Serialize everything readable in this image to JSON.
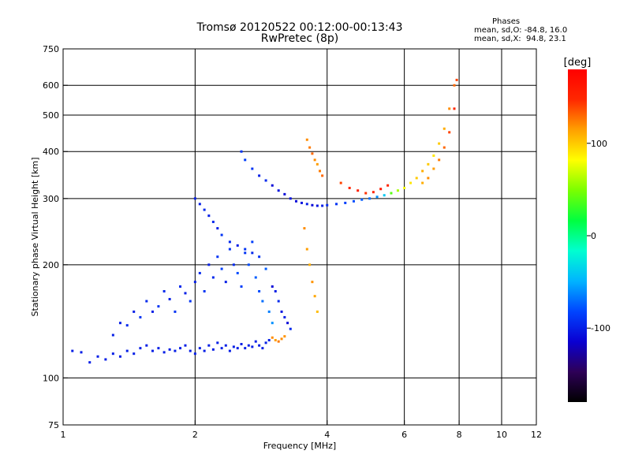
{
  "header": {
    "title_line1": "Tromsø 20120522 00:12:00-00:13:43",
    "title_line2": "RwPretec (8p)",
    "phases_title": "Phases",
    "phases_o": "mean, sd,O: -84.8, 16.0",
    "phases_x": "mean, sd,X:  94.8, 23.1"
  },
  "colorbar": {
    "label": "[deg]",
    "ticks": [
      "100",
      "0",
      "-100"
    ],
    "tick_values": [
      100,
      0,
      -100
    ],
    "range": [
      -180,
      180
    ],
    "colors": [
      "#000000",
      "#2e0057",
      "#0a00d2",
      "#0045ff",
      "#00b4ff",
      "#00ffd0",
      "#00ff40",
      "#7aff00",
      "#ffff00",
      "#ffa000",
      "#ff2800",
      "#ff0000"
    ]
  },
  "chart_data": {
    "type": "scatter",
    "title": "Tromsø 20120522 00:12:00-00:13:43",
    "subtitle": "RwPretec (8p)",
    "xlabel": "Frequency [MHz]",
    "ylabel": "Stationary phase Virtual Height [km]",
    "x_scale": "log",
    "y_scale": "log",
    "xlim": [
      1,
      12
    ],
    "ylim": [
      75,
      750
    ],
    "x_ticks": [
      1,
      2,
      4,
      6,
      8,
      10,
      12
    ],
    "x_tick_labels": [
      "1",
      "2",
      "4",
      "6",
      "8",
      "10",
      "12"
    ],
    "y_ticks": [
      75,
      100,
      200,
      300,
      400,
      500,
      600,
      750
    ],
    "y_tick_labels": [
      "75",
      "100",
      "200",
      "300",
      "400",
      "500",
      "600",
      "750"
    ],
    "x_grid": [
      2,
      4,
      6,
      8,
      10
    ],
    "y_grid": [
      100,
      200,
      300,
      400,
      500,
      600
    ],
    "grid": true,
    "color_variable": "phase [deg]",
    "series": [
      {
        "x": [
          1.05,
          1.1,
          1.15,
          1.2,
          1.25,
          1.3,
          1.35,
          1.4,
          1.45,
          1.5,
          1.55,
          1.6,
          1.65,
          1.7,
          1.75,
          1.8,
          1.85,
          1.9,
          1.95,
          2.0,
          2.05,
          2.1,
          2.15,
          2.2,
          2.25,
          2.3,
          2.35,
          2.4,
          2.45,
          2.5,
          2.55,
          2.6,
          2.65,
          2.7,
          2.75,
          2.8,
          2.85,
          2.9,
          2.95
        ],
        "y": [
          118,
          117,
          110,
          114,
          112,
          116,
          114,
          118,
          116,
          120,
          122,
          118,
          120,
          117,
          119,
          118,
          120,
          122,
          118,
          116,
          120,
          118,
          122,
          119,
          124,
          120,
          122,
          118,
          121,
          120,
          123,
          120,
          122,
          121,
          125,
          122,
          120,
          124,
          126
        ],
        "phase": [
          -100,
          -100,
          -100,
          -100,
          -100,
          -100,
          -100,
          -100,
          -100,
          -100,
          -100,
          -100,
          -100,
          -100,
          -100,
          -100,
          -100,
          -100,
          -100,
          -100,
          -100,
          -100,
          -100,
          -100,
          -100,
          -100,
          -100,
          -100,
          -100,
          -100,
          -100,
          -100,
          -100,
          -100,
          -100,
          -100,
          -100,
          -100,
          -100
        ]
      },
      {
        "x": [
          1.3,
          1.35,
          1.4,
          1.45,
          1.5,
          1.55,
          1.6,
          1.65,
          1.7,
          1.75,
          1.8,
          1.85,
          1.9,
          1.95,
          2.0,
          2.05,
          2.1,
          2.15,
          2.2,
          2.25,
          2.3,
          2.35,
          2.4,
          2.45,
          2.5,
          2.55,
          2.6,
          2.65,
          2.7,
          2.75,
          2.8,
          2.85,
          2.9,
          2.95,
          3.0
        ],
        "y": [
          130,
          140,
          138,
          150,
          145,
          160,
          150,
          155,
          170,
          162,
          150,
          175,
          168,
          160,
          180,
          190,
          170,
          200,
          185,
          210,
          195,
          180,
          220,
          200,
          190,
          175,
          215,
          200,
          230,
          185,
          170,
          160,
          195,
          150,
          140
        ],
        "phase": [
          -100,
          -100,
          -95,
          -100,
          -90,
          -95,
          -100,
          -90,
          -95,
          -100,
          -90,
          -95,
          -100,
          -90,
          -100,
          -95,
          -90,
          -100,
          -95,
          -90,
          -85,
          -100,
          -90,
          -95,
          -80,
          -85,
          -90,
          -80,
          -85,
          -75,
          -80,
          -70,
          -75,
          -65,
          -60
        ]
      },
      {
        "x": [
          2.0,
          2.05,
          2.1,
          2.15,
          2.2,
          2.25,
          2.3,
          2.4,
          2.5,
          2.6,
          2.7,
          2.8
        ],
        "y": [
          300,
          290,
          280,
          270,
          260,
          250,
          240,
          230,
          225,
          220,
          215,
          210
        ],
        "phase": [
          -100,
          -100,
          -95,
          -100,
          -95,
          -100,
          -90,
          -95,
          -100,
          -90,
          -95,
          -90
        ]
      },
      {
        "x": [
          2.55,
          2.6,
          2.7,
          2.8,
          2.9,
          3.0,
          3.1,
          3.2,
          3.3,
          3.4,
          3.5,
          3.6,
          3.7,
          3.8,
          3.9,
          4.0,
          4.2,
          4.4,
          4.6,
          4.8,
          5.0,
          5.2,
          5.4,
          5.6,
          5.8,
          6.0,
          6.2,
          6.4,
          6.6,
          6.8,
          7.0,
          7.2,
          7.4,
          7.6,
          7.8
        ],
        "y": [
          400,
          380,
          360,
          345,
          335,
          325,
          315,
          308,
          300,
          295,
          292,
          290,
          288,
          287,
          287,
          288,
          290,
          292,
          295,
          298,
          300,
          303,
          306,
          310,
          315,
          320,
          330,
          340,
          355,
          370,
          390,
          420,
          460,
          520,
          600
        ],
        "phase": [
          -90,
          -85,
          -90,
          -100,
          -95,
          -110,
          -105,
          -110,
          -105,
          -110,
          -105,
          -100,
          -110,
          -105,
          -100,
          -95,
          -90,
          -85,
          -80,
          -75,
          -70,
          -60,
          -40,
          40,
          60,
          80,
          90,
          100,
          110,
          100,
          90,
          100,
          110,
          120,
          130
        ]
      },
      {
        "x": [
          3.0,
          3.05,
          3.1,
          3.15,
          3.2,
          3.25,
          3.3
        ],
        "y": [
          175,
          170,
          160,
          150,
          145,
          140,
          135
        ],
        "phase": [
          -110,
          -100,
          -95,
          -105,
          -100,
          -110,
          -95
        ]
      },
      {
        "x": [
          3.0,
          3.05,
          3.1,
          3.15,
          3.2
        ],
        "y": [
          128,
          126,
          125,
          127,
          129
        ],
        "phase": [
          120,
          115,
          125,
          120,
          118
        ]
      },
      {
        "x": [
          3.55,
          3.6,
          3.65,
          3.7,
          3.75,
          3.8
        ],
        "y": [
          250,
          220,
          200,
          180,
          165,
          150
        ],
        "phase": [
          120,
          115,
          110,
          118,
          112,
          105
        ]
      },
      {
        "x": [
          3.6,
          3.65,
          3.7,
          3.75,
          3.8,
          3.85,
          3.9
        ],
        "y": [
          430,
          410,
          395,
          380,
          370,
          355,
          345
        ],
        "phase": [
          120,
          125,
          130,
          120,
          115,
          125,
          130
        ]
      },
      {
        "x": [
          4.3,
          4.5,
          4.7,
          4.9,
          5.1,
          5.3,
          5.5
        ],
        "y": [
          330,
          320,
          315,
          310,
          312,
          318,
          325
        ],
        "phase": [
          140,
          150,
          155,
          145,
          150,
          160,
          150
        ]
      },
      {
        "x": [
          6.6,
          6.8,
          7.0,
          7.2,
          7.4,
          7.6,
          7.8,
          7.9
        ],
        "y": [
          330,
          340,
          360,
          380,
          410,
          450,
          520,
          620
        ],
        "phase": [
          110,
          120,
          115,
          125,
          130,
          140,
          150,
          140
        ]
      }
    ]
  }
}
